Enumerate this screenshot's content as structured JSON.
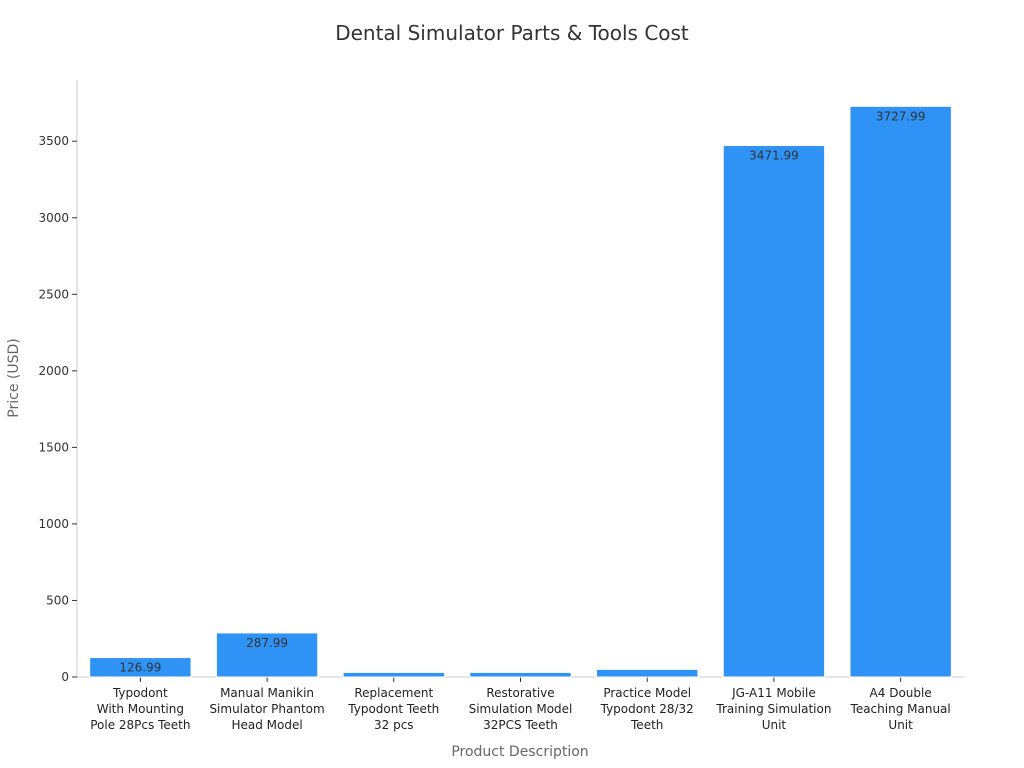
{
  "chart_data": {
    "type": "bar",
    "title": "Dental Simulator Parts & Tools Cost",
    "xlabel": "Product Description",
    "ylabel": "Price (USD)",
    "categories": [
      [
        "Typodont",
        "With Mounting",
        "Pole 28Pcs Teeth"
      ],
      [
        "Manual Manikin",
        "Simulator Phantom",
        "Head Model"
      ],
      [
        "Replacement",
        "Typodont Teeth",
        "32 pcs"
      ],
      [
        "Restorative",
        "Simulation Model",
        "32PCS Teeth"
      ],
      [
        "Practice Model",
        "Typodont 28/32",
        "Teeth"
      ],
      [
        "JG-A11 Mobile",
        "Training Simulation",
        "Unit"
      ],
      [
        "A4 Double",
        "Teaching Manual",
        "Unit"
      ]
    ],
    "values": [
      126.99,
      287.99,
      29.99,
      29.99,
      49.99,
      3471.99,
      3727.99
    ],
    "data_labels": [
      "126.99",
      "287.99",
      "",
      "",
      "",
      "3471.99",
      "3727.99"
    ],
    "ylim": [
      0,
      3900
    ],
    "yticks": [
      0,
      500,
      1000,
      1500,
      2000,
      2500,
      3000,
      3500
    ],
    "bar_color": "#2f92f5",
    "grid": false,
    "legend": "none"
  }
}
